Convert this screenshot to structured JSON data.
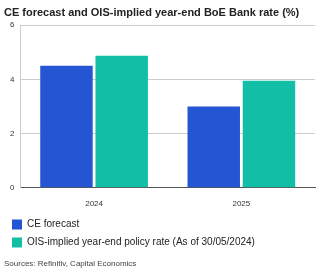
{
  "chart_data": {
    "type": "bar",
    "title": "CE forecast and OIS-implied year-end BoE Bank rate (%)",
    "categories": [
      "2024",
      "2025"
    ],
    "series": [
      {
        "name": "CE forecast",
        "color": "#2456d3",
        "values": [
          4.5,
          3.0
        ]
      },
      {
        "name": "OIS-implied year-end policy rate (As of 30/05/2024)",
        "color": "#12bfa6",
        "values": [
          4.87,
          3.95
        ]
      }
    ],
    "ylim": [
      0,
      6
    ],
    "yticks": [
      0,
      2,
      4,
      6
    ],
    "grid": true,
    "legend": "bottom",
    "source": "Sources: Refinitiv, Capital Economics"
  }
}
